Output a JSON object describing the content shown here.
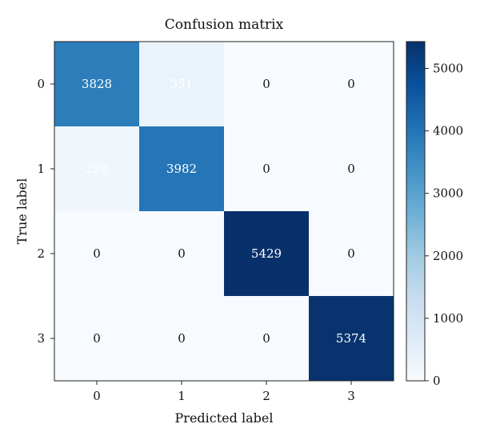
{
  "chart_data": {
    "type": "heatmap",
    "title": "Confusion matrix",
    "xlabel": "Predicted label",
    "ylabel": "True label",
    "x_categories": [
      "0",
      "1",
      "2",
      "3"
    ],
    "y_categories": [
      "0",
      "1",
      "2",
      "3"
    ],
    "values": [
      [
        3828,
        351,
        0,
        0
      ],
      [
        228,
        3982,
        0,
        0
      ],
      [
        0,
        0,
        5429,
        0
      ],
      [
        0,
        0,
        0,
        5374
      ]
    ],
    "colorbar": {
      "range": [
        0,
        5429
      ],
      "ticks": [
        0,
        1000,
        2000,
        3000,
        4000,
        5000
      ],
      "tick_labels": [
        "0",
        "1000",
        "2000",
        "3000",
        "4000",
        "5000"
      ],
      "colormap": "Blues"
    },
    "colors": {
      "low": "#f7fbff",
      "high": "#08306b"
    }
  }
}
